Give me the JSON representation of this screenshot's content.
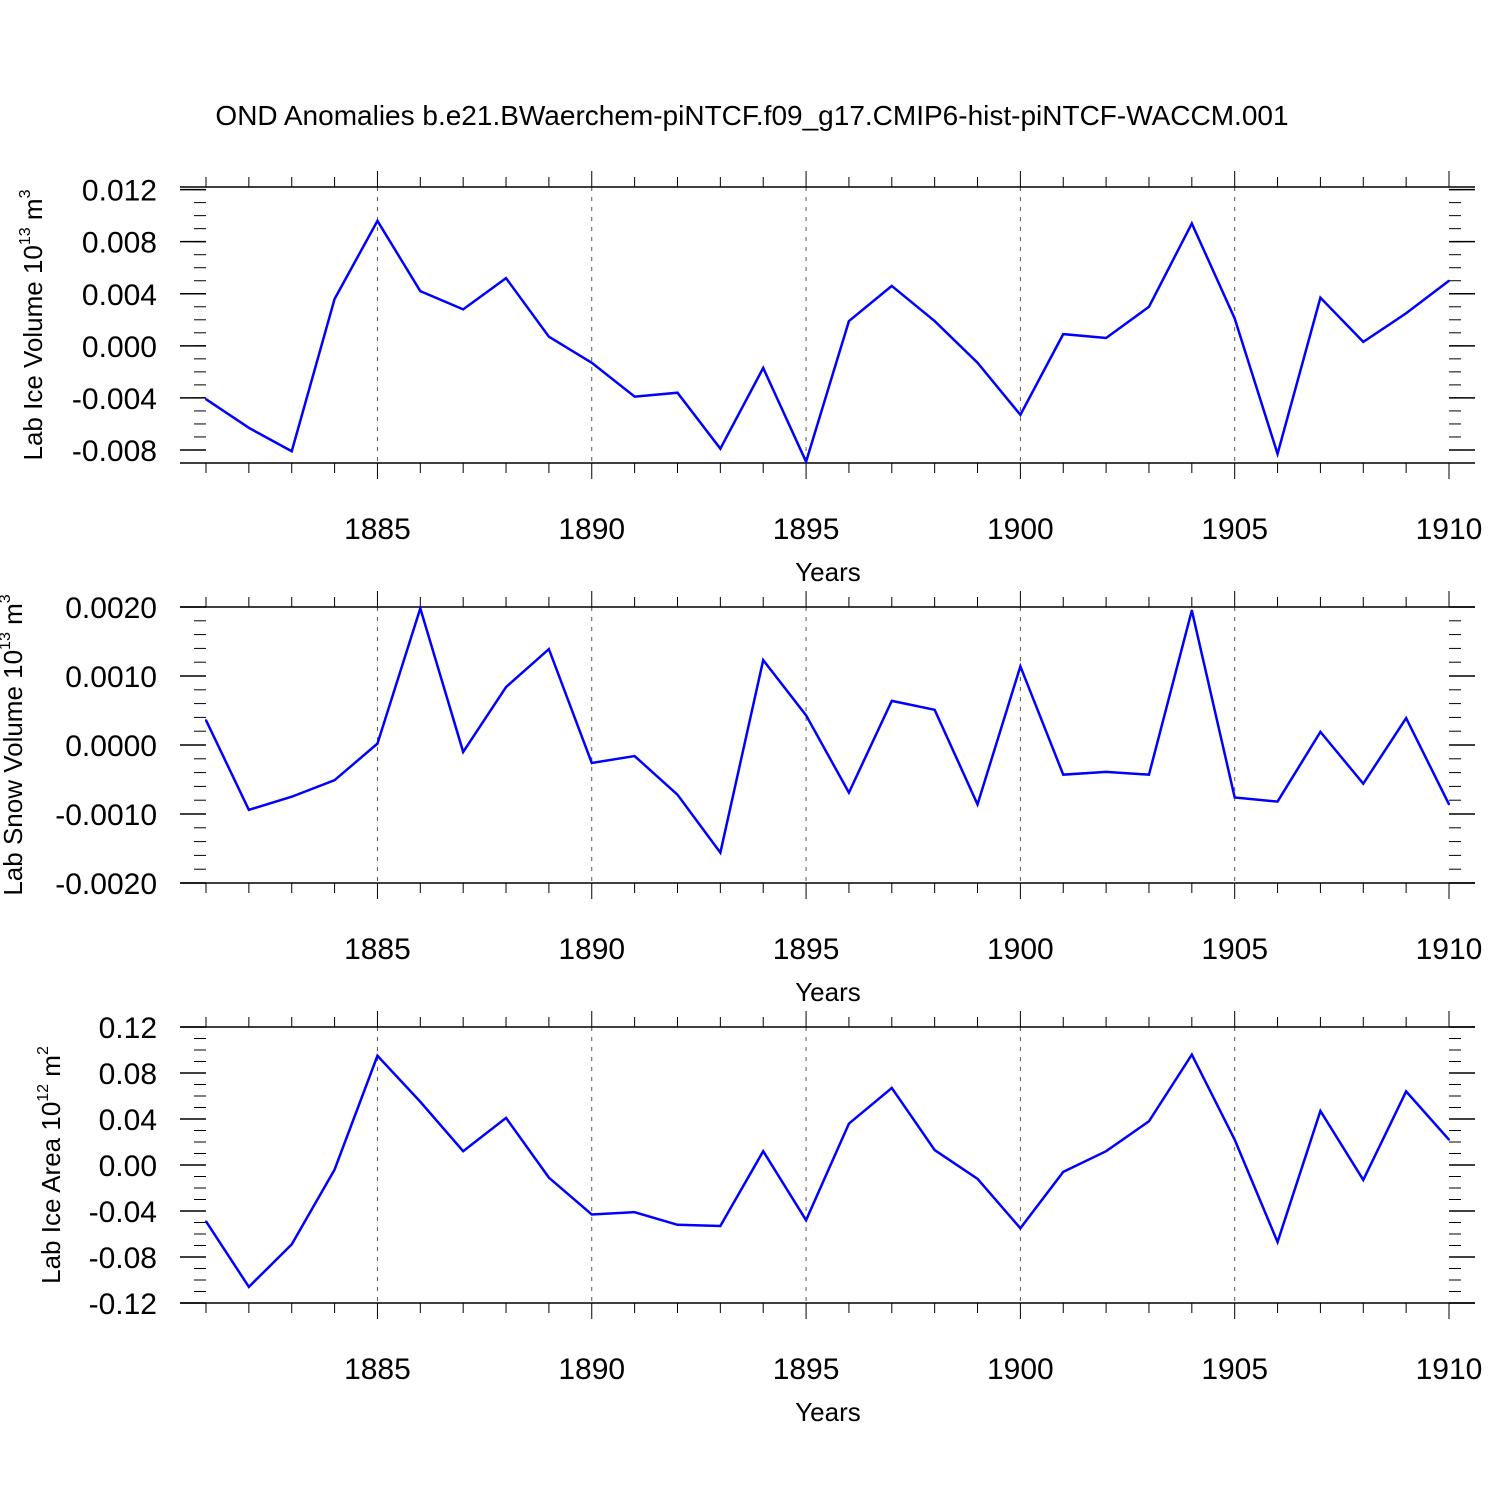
{
  "figure": {
    "title": "OND Anomalies b.e21.BWaerchem-piNTCF.f09_g17.CMIP6-hist-piNTCF-WACCM.001",
    "line_color": "#0000ff",
    "grid_color": "#555555"
  },
  "chart_data": [
    {
      "type": "line",
      "title": "",
      "xlabel": "Years",
      "ylabel_main": "Lab Ice Volume 10",
      "ylabel_exp": "13",
      "ylabel_unit": " m",
      "ylabel_unit_exp": "3",
      "xlim": [
        1881,
        1910
      ],
      "ylim": [
        -0.009,
        0.0122
      ],
      "x_ticks": [
        1885,
        1890,
        1895,
        1900,
        1905,
        1910
      ],
      "x_tick_labels": [
        "1885",
        "1890",
        "1895",
        "1900",
        "1905",
        "1910"
      ],
      "y_ticks": [
        0.012,
        0.008,
        0.004,
        0.0,
        -0.004,
        -0.008
      ],
      "y_tick_labels": [
        "0.012",
        "0.008",
        "0.004",
        "0.000",
        "-0.004",
        "-0.008"
      ],
      "y_minor_step": 0.001,
      "grid_x": [
        1885,
        1890,
        1895,
        1900,
        1905
      ],
      "x": [
        1881,
        1882,
        1883,
        1884,
        1885,
        1886,
        1887,
        1888,
        1889,
        1890,
        1891,
        1892,
        1893,
        1894,
        1895,
        1896,
        1897,
        1898,
        1899,
        1900,
        1901,
        1902,
        1903,
        1904,
        1905,
        1906,
        1907,
        1908,
        1909,
        1910
      ],
      "series": [
        {
          "name": "Lab Ice Volume",
          "values": [
            -0.0041,
            -0.0063,
            -0.0081,
            0.0036,
            0.0096,
            0.0042,
            0.0028,
            0.0052,
            0.0007,
            -0.0013,
            -0.0039,
            -0.0036,
            -0.0079,
            -0.0017,
            -0.0089,
            0.0019,
            0.0046,
            0.0019,
            -0.0013,
            -0.0053,
            0.0009,
            0.0006,
            0.003,
            0.0094,
            0.0021,
            -0.0083,
            0.0037,
            0.0003,
            0.0025,
            0.005
          ]
        }
      ]
    },
    {
      "type": "line",
      "title": "",
      "xlabel": "Years",
      "ylabel_main": "Lab Snow Volume 10",
      "ylabel_exp": "13",
      "ylabel_unit": " m",
      "ylabel_unit_exp": "3",
      "xlim": [
        1881,
        1910
      ],
      "ylim": [
        -0.002,
        0.002
      ],
      "x_ticks": [
        1885,
        1890,
        1895,
        1900,
        1905,
        1910
      ],
      "x_tick_labels": [
        "1885",
        "1890",
        "1895",
        "1900",
        "1905",
        "1910"
      ],
      "y_ticks": [
        0.002,
        0.001,
        0.0,
        -0.001,
        -0.002
      ],
      "y_tick_labels": [
        "0.0020",
        "0.0010",
        "0.0000",
        "-0.0010",
        "-0.0020"
      ],
      "y_minor_step": 0.0002,
      "grid_x": [
        1885,
        1890,
        1895,
        1900,
        1905
      ],
      "x": [
        1881,
        1882,
        1883,
        1884,
        1885,
        1886,
        1887,
        1888,
        1889,
        1890,
        1891,
        1892,
        1893,
        1894,
        1895,
        1896,
        1897,
        1898,
        1899,
        1900,
        1901,
        1902,
        1903,
        1904,
        1905,
        1906,
        1907,
        1908,
        1909,
        1910
      ],
      "series": [
        {
          "name": "Lab Snow Volume",
          "values": [
            0.00036,
            -0.00094,
            -0.00075,
            -0.00051,
            2e-05,
            0.00198,
            -0.0001,
            0.00084,
            0.00139,
            -0.00026,
            -0.00016,
            -0.00072,
            -0.00156,
            0.00123,
            0.00043,
            -0.00069,
            0.00064,
            0.00051,
            -0.00086,
            0.00114,
            -0.00043,
            -0.00039,
            -0.00043,
            0.00195,
            -0.00076,
            -0.00082,
            0.00019,
            -0.00056,
            0.00039,
            -0.00086
          ]
        }
      ]
    },
    {
      "type": "line",
      "title": "",
      "xlabel": "Years",
      "ylabel_main": "Lab Ice Area 10",
      "ylabel_exp": "12",
      "ylabel_unit": " m",
      "ylabel_unit_exp": "2",
      "xlim": [
        1881,
        1910
      ],
      "ylim": [
        -0.12,
        0.12
      ],
      "x_ticks": [
        1885,
        1890,
        1895,
        1900,
        1905,
        1910
      ],
      "x_tick_labels": [
        "1885",
        "1890",
        "1895",
        "1900",
        "1905",
        "1910"
      ],
      "y_ticks": [
        0.12,
        0.08,
        0.04,
        0.0,
        -0.04,
        -0.08,
        -0.12
      ],
      "y_tick_labels": [
        "0.12",
        "0.08",
        "0.04",
        "0.00",
        "-0.04",
        "-0.08",
        "-0.12"
      ],
      "y_minor_step": 0.01,
      "grid_x": [
        1885,
        1890,
        1895,
        1900,
        1905
      ],
      "x": [
        1881,
        1882,
        1883,
        1884,
        1885,
        1886,
        1887,
        1888,
        1889,
        1890,
        1891,
        1892,
        1893,
        1894,
        1895,
        1896,
        1897,
        1898,
        1899,
        1900,
        1901,
        1902,
        1903,
        1904,
        1905,
        1906,
        1907,
        1908,
        1909,
        1910
      ],
      "series": [
        {
          "name": "Lab Ice Area",
          "values": [
            -0.049,
            -0.106,
            -0.069,
            -0.004,
            0.095,
            0.055,
            0.012,
            0.041,
            -0.011,
            -0.043,
            -0.041,
            -0.052,
            -0.053,
            0.012,
            -0.048,
            0.036,
            0.067,
            0.013,
            -0.012,
            -0.055,
            -0.006,
            0.012,
            0.038,
            0.096,
            0.022,
            -0.067,
            0.047,
            -0.013,
            0.064,
            0.022
          ]
        }
      ]
    }
  ]
}
